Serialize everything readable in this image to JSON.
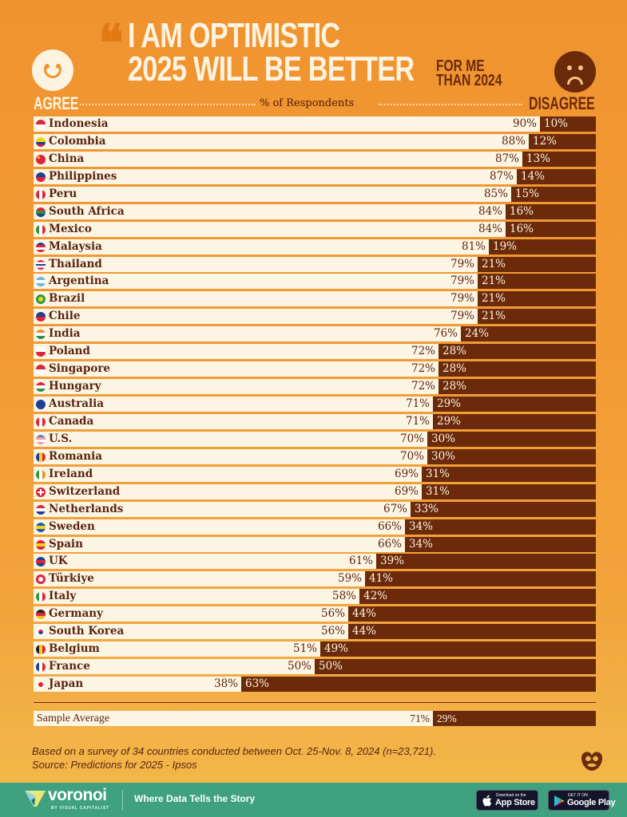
{
  "header": {
    "title_line1": "I AM OPTIMISTIC",
    "title_line2": "2025 WILL BE BETTER",
    "title_side_line1": "FOR ME",
    "title_side_line2": "THAN 2024",
    "agree_label": "AGREE",
    "disagree_label": "DISAGREE",
    "axis_label": "% of Respondents",
    "quote_icon": "quote-mark-icon",
    "agree_icon": "smiley-face-icon",
    "disagree_icon": "frowning-face-icon"
  },
  "colors": {
    "background": "#f0932f",
    "agree_bar": "#fdf5e3",
    "disagree_bar": "#6b2a0a",
    "title_text": "#fdf3e1",
    "accent_dark": "#6b2a0a",
    "footer": "#3fa17f"
  },
  "chart_data": {
    "type": "bar",
    "orientation": "horizontal-stacked",
    "title": "I Am Optimistic 2025 Will Be Better For Me Than 2024",
    "xlabel": "% of Respondents",
    "ylabel": "",
    "xlim": [
      0,
      100
    ],
    "legend": [
      "Agree",
      "Disagree"
    ],
    "categories": [
      "Indonesia",
      "Colombia",
      "China",
      "Philippines",
      "Peru",
      "South Africa",
      "Mexico",
      "Malaysia",
      "Thailand",
      "Argentina",
      "Brazil",
      "Chile",
      "India",
      "Poland",
      "Singapore",
      "Hungary",
      "Australia",
      "Canada",
      "U.S.",
      "Romania",
      "Ireland",
      "Switzerland",
      "Netherlands",
      "Sweden",
      "Spain",
      "UK",
      "Türkiye",
      "Italy",
      "Germany",
      "South Korea",
      "Belgium",
      "France",
      "Japan"
    ],
    "series": [
      {
        "name": "Agree",
        "values": [
          90,
          88,
          87,
          87,
          85,
          84,
          84,
          81,
          79,
          79,
          79,
          79,
          76,
          72,
          72,
          72,
          71,
          71,
          70,
          70,
          69,
          69,
          67,
          66,
          66,
          61,
          59,
          58,
          56,
          56,
          51,
          50,
          38
        ]
      },
      {
        "name": "Disagree",
        "values": [
          10,
          12,
          13,
          14,
          15,
          16,
          16,
          19,
          21,
          21,
          21,
          21,
          24,
          28,
          28,
          28,
          29,
          29,
          30,
          30,
          31,
          31,
          33,
          34,
          34,
          39,
          41,
          42,
          44,
          44,
          49,
          50,
          63
        ]
      }
    ],
    "average": {
      "label": "Sample Average",
      "agree": 71,
      "disagree": 29
    }
  },
  "rows": [
    {
      "name": "Indonesia",
      "agree": "90%",
      "disagree": "10%",
      "dis_pct": 10,
      "flag": [
        "#e0243a",
        "#ffffff"
      ],
      "flag_dir": "h"
    },
    {
      "name": "Colombia",
      "agree": "88%",
      "disagree": "12%",
      "dis_pct": 12,
      "flag": [
        "#f7d117",
        "#f7d117",
        "#1d3f94",
        "#d6203a"
      ],
      "flag_dir": "h"
    },
    {
      "name": "China",
      "agree": "87%",
      "disagree": "13%",
      "dis_pct": 13,
      "flag": [
        "#e0243a"
      ],
      "flag_dir": "h"
    },
    {
      "name": "Philippines",
      "agree": "87%",
      "disagree": "14%",
      "dis_pct": 14,
      "flag": [
        "#1d3f94",
        "#e0243a"
      ],
      "flag_dir": "h"
    },
    {
      "name": "Peru",
      "agree": "85%",
      "disagree": "15%",
      "dis_pct": 15,
      "flag": [
        "#e0243a",
        "#ffffff",
        "#e0243a"
      ],
      "flag_dir": "v"
    },
    {
      "name": "South Africa",
      "agree": "84%",
      "disagree": "16%",
      "dis_pct": 16,
      "flag": [
        "#e0243a",
        "#2f8f46",
        "#1d3f94"
      ],
      "flag_dir": "h"
    },
    {
      "name": "Mexico",
      "agree": "84%",
      "disagree": "16%",
      "dis_pct": 16,
      "flag": [
        "#2f8f46",
        "#ffffff",
        "#e0243a"
      ],
      "flag_dir": "v"
    },
    {
      "name": "Malaysia",
      "agree": "81%",
      "disagree": "19%",
      "dis_pct": 19,
      "flag": [
        "#1d3f94",
        "#e0243a",
        "#ffffff",
        "#e0243a"
      ],
      "flag_dir": "h"
    },
    {
      "name": "Thailand",
      "agree": "79%",
      "disagree": "21%",
      "dis_pct": 21,
      "flag": [
        "#e0243a",
        "#ffffff",
        "#1d3f94",
        "#ffffff",
        "#e0243a"
      ],
      "flag_dir": "h"
    },
    {
      "name": "Argentina",
      "agree": "79%",
      "disagree": "21%",
      "dis_pct": 21,
      "flag": [
        "#6fb1e4",
        "#ffffff",
        "#6fb1e4"
      ],
      "flag_dir": "h"
    },
    {
      "name": "Brazil",
      "agree": "79%",
      "disagree": "21%",
      "dis_pct": 21,
      "flag": [
        "#2f9a46"
      ],
      "flag_dir": "h"
    },
    {
      "name": "Chile",
      "agree": "79%",
      "disagree": "21%",
      "dis_pct": 21,
      "flag": [
        "#1d3f94",
        "#e0243a"
      ],
      "flag_dir": "h"
    },
    {
      "name": "India",
      "agree": "76%",
      "disagree": "24%",
      "dis_pct": 24,
      "flag": [
        "#f28c28",
        "#ffffff",
        "#2f8f46"
      ],
      "flag_dir": "h"
    },
    {
      "name": "Poland",
      "agree": "72%",
      "disagree": "28%",
      "dis_pct": 28,
      "flag": [
        "#ffffff",
        "#e0243a"
      ],
      "flag_dir": "h"
    },
    {
      "name": "Singapore",
      "agree": "72%",
      "disagree": "28%",
      "dis_pct": 28,
      "flag": [
        "#e0243a",
        "#ffffff"
      ],
      "flag_dir": "h"
    },
    {
      "name": "Hungary",
      "agree": "72%",
      "disagree": "28%",
      "dis_pct": 28,
      "flag": [
        "#e0243a",
        "#ffffff",
        "#2f8f46"
      ],
      "flag_dir": "h"
    },
    {
      "name": "Australia",
      "agree": "71%",
      "disagree": "29%",
      "dis_pct": 29,
      "flag": [
        "#1d3f94"
      ],
      "flag_dir": "h"
    },
    {
      "name": "Canada",
      "agree": "71%",
      "disagree": "29%",
      "dis_pct": 29,
      "flag": [
        "#e0243a",
        "#ffffff",
        "#e0243a"
      ],
      "flag_dir": "v"
    },
    {
      "name": "U.S.",
      "agree": "70%",
      "disagree": "30%",
      "dis_pct": 30,
      "flag": [
        "#6a7fc0",
        "#f09aa8",
        "#ffffff",
        "#f09aa8"
      ],
      "flag_dir": "h"
    },
    {
      "name": "Romania",
      "agree": "70%",
      "disagree": "30%",
      "dis_pct": 30,
      "flag": [
        "#1d3f94",
        "#f7d117",
        "#e0243a"
      ],
      "flag_dir": "v"
    },
    {
      "name": "Ireland",
      "agree": "69%",
      "disagree": "31%",
      "dis_pct": 31,
      "flag": [
        "#2f9a46",
        "#ffffff",
        "#f28c28"
      ],
      "flag_dir": "v"
    },
    {
      "name": "Switzerland",
      "agree": "69%",
      "disagree": "31%",
      "dis_pct": 31,
      "flag": [
        "#e0243a"
      ],
      "flag_dir": "h"
    },
    {
      "name": "Netherlands",
      "agree": "67%",
      "disagree": "33%",
      "dis_pct": 33,
      "flag": [
        "#e0243a",
        "#ffffff",
        "#1d3f94"
      ],
      "flag_dir": "h"
    },
    {
      "name": "Sweden",
      "agree": "66%",
      "disagree": "34%",
      "dis_pct": 34,
      "flag": [
        "#1d5fa8",
        "#f7d117",
        "#1d5fa8"
      ],
      "flag_dir": "h"
    },
    {
      "name": "Spain",
      "agree": "66%",
      "disagree": "34%",
      "dis_pct": 34,
      "flag": [
        "#e0243a",
        "#f7d117",
        "#e0243a"
      ],
      "flag_dir": "h"
    },
    {
      "name": "UK",
      "agree": "61%",
      "disagree": "39%",
      "dis_pct": 39,
      "flag": [
        "#1d3f94",
        "#e0243a",
        "#1d3f94"
      ],
      "flag_dir": "h"
    },
    {
      "name": "Türkiye",
      "agree": "59%",
      "disagree": "41%",
      "dis_pct": 41,
      "flag": [
        "#e0243a"
      ],
      "flag_dir": "h"
    },
    {
      "name": "Italy",
      "agree": "58%",
      "disagree": "42%",
      "dis_pct": 42,
      "flag": [
        "#2f9a46",
        "#ffffff",
        "#e0243a"
      ],
      "flag_dir": "v"
    },
    {
      "name": "Germany",
      "agree": "56%",
      "disagree": "44%",
      "dis_pct": 44,
      "flag": [
        "#222222",
        "#e0243a",
        "#f7c417"
      ],
      "flag_dir": "h"
    },
    {
      "name": "South Korea",
      "agree": "56%",
      "disagree": "44%",
      "dis_pct": 44,
      "flag": [
        "#ffffff"
      ],
      "flag_dir": "h"
    },
    {
      "name": "Belgium",
      "agree": "51%",
      "disagree": "49%",
      "dis_pct": 49,
      "flag": [
        "#222222",
        "#f7d117",
        "#e0243a"
      ],
      "flag_dir": "v"
    },
    {
      "name": "France",
      "agree": "50%",
      "disagree": "50%",
      "dis_pct": 50,
      "flag": [
        "#1d3f94",
        "#ffffff",
        "#e0243a"
      ],
      "flag_dir": "v"
    },
    {
      "name": "Japan",
      "agree": "38%",
      "disagree": "63%",
      "dis_pct": 63,
      "flag": [
        "#fdf5e3"
      ],
      "flag_dir": "h"
    }
  ],
  "average_row": {
    "name": "Sample Average",
    "agree": "71%",
    "disagree": "29%",
    "dis_pct": 29
  },
  "notes": {
    "line1": "Based on a survey of 34 countries conducted between Oct. 25-Nov. 8, 2024 (n=23,721).",
    "line2": "Source: Predictions for 2025 - Ipsos"
  },
  "footer": {
    "brand": "voronoi",
    "brand_sub": "BY VISUAL CAPITALIST",
    "tagline": "Where Data Tells the Story",
    "app_store_small": "Download on the",
    "app_store_big": "App Store",
    "google_play_small": "GET IT ON",
    "google_play_big": "Google Play"
  }
}
